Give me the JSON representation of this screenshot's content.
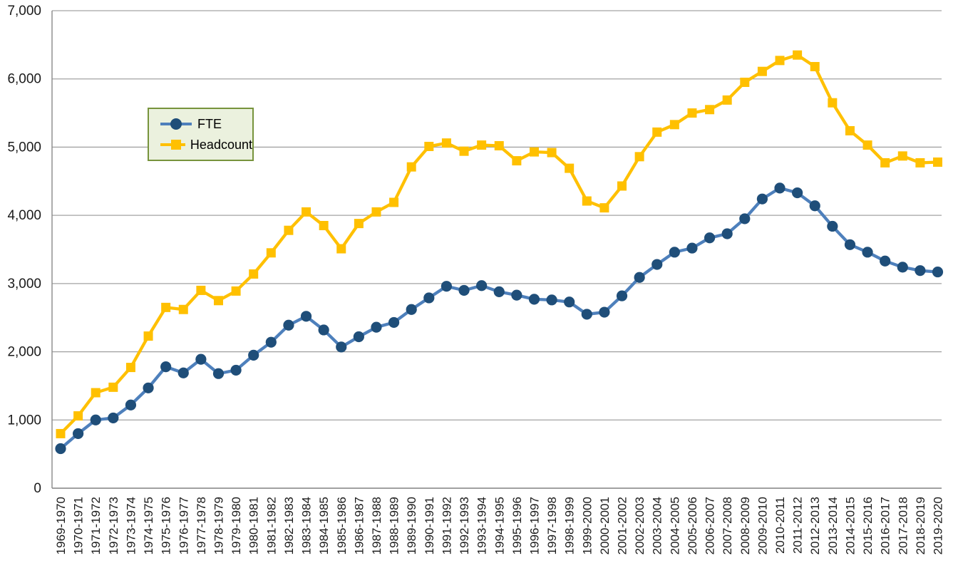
{
  "chart_data": {
    "type": "line",
    "title": "",
    "xlabel": "",
    "ylabel": "",
    "ylim": [
      0,
      7000
    ],
    "ytick_step": 1000,
    "ytick_labels": [
      "0",
      "1,000",
      "2,000",
      "3,000",
      "4,000",
      "5,000",
      "6,000",
      "7,000"
    ],
    "grid": true,
    "legend_position": "inside-top-left",
    "categories": [
      "1969-1970",
      "1970-1971",
      "1971-1972",
      "1972-1973",
      "1973-1974",
      "1974-1975",
      "1975-1976",
      "1976-1977",
      "1977-1978",
      "1978-1979",
      "1979-1980",
      "1980-1981",
      "1981-1982",
      "1982-1983",
      "1983-1984",
      "1984-1985",
      "1985-1986",
      "1986-1987",
      "1987-1988",
      "1988-1989",
      "1989-1990",
      "1990-1991",
      "1991-1992",
      "1992-1993",
      "1993-1994",
      "1994-1995",
      "1995-1996",
      "1996-1997",
      "1997-1998",
      "1998-1999",
      "1999-2000",
      "2000-2001",
      "2001-2002",
      "2002-2003",
      "2003-2004",
      "2004-2005",
      "2005-2006",
      "2006-2007",
      "2007-2008",
      "2008-2009",
      "2009-2010",
      "2010-2011",
      "2011-2012",
      "2012-2013",
      "2013-2014",
      "2014-2015",
      "2015-2016",
      "2016-2017",
      "2017-2018",
      "2018-2019",
      "2019-2020"
    ],
    "series": [
      {
        "name": "FTE",
        "marker": "circle",
        "marker_color": "#1F4E79",
        "line_color": "#4E80BC",
        "values": [
          580,
          800,
          1000,
          1030,
          1220,
          1470,
          1780,
          1690,
          1890,
          1680,
          1730,
          1950,
          2140,
          2390,
          2520,
          2320,
          2070,
          2220,
          2360,
          2430,
          2620,
          2790,
          2960,
          2900,
          2970,
          2880,
          2830,
          2770,
          2760,
          2730,
          2550,
          2580,
          2820,
          3090,
          3280,
          3460,
          3520,
          3670,
          3730,
          3950,
          4240,
          4400,
          4330,
          4140,
          3840,
          3570,
          3460,
          3330,
          3240,
          3190,
          3170
        ]
      },
      {
        "name": "Headcount",
        "marker": "square",
        "marker_color": "#FFC000",
        "line_color": "#FFC000",
        "values": [
          800,
          1060,
          1400,
          1480,
          1770,
          2230,
          2650,
          2620,
          2900,
          2750,
          2890,
          3140,
          3450,
          3780,
          4050,
          3850,
          3510,
          3880,
          4050,
          4190,
          4710,
          5010,
          5060,
          4940,
          5030,
          5020,
          4800,
          4930,
          4920,
          4690,
          4210,
          4110,
          4430,
          4860,
          5220,
          5330,
          5500,
          5550,
          5690,
          5950,
          6110,
          6270,
          6350,
          6180,
          5650,
          5240,
          5030,
          4770,
          4870,
          4770,
          4780
        ]
      }
    ]
  },
  "colors": {
    "gridline": "#A3A3A3",
    "axis_line": "#898989",
    "tick_text": "#1A1A1A",
    "legend_border": "#77933C",
    "legend_fill": "#EBF1DE"
  }
}
